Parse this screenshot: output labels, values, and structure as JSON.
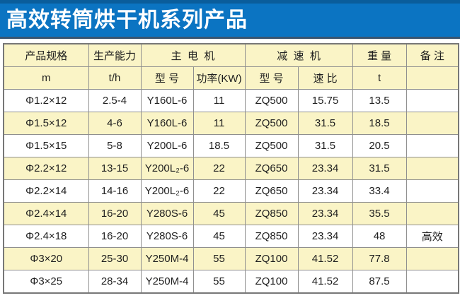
{
  "banner": {
    "title": "高效转筒烘干机系列产品",
    "bg_color": "#0b74c2",
    "top_strip_color": "#0a5d9b",
    "bottom_strip_color": "#3a5570",
    "text_color": "#ffffff"
  },
  "table": {
    "header_row1": [
      "产品规格",
      "生产能力",
      "主  电  机",
      "减  速  机",
      "重 量",
      "备 注"
    ],
    "header_row2": [
      "m",
      "t/h",
      "型 号",
      "功率(KW)",
      "型 号",
      "速 比",
      "t",
      ""
    ],
    "rows": [
      [
        "Φ1.2×12",
        "2.5-4",
        "Y160L-6",
        "11",
        "ZQ500",
        "15.75",
        "13.5",
        ""
      ],
      [
        "Φ1.5×12",
        "4-6",
        "Y160L-6",
        "11",
        "ZQ500",
        "31.5",
        "18.5",
        ""
      ],
      [
        "Φ1.5×15",
        "5-8",
        "Y200L-6",
        "18.5",
        "ZQ500",
        "31.5",
        "20.5",
        ""
      ],
      [
        "Φ2.2×12",
        "13-15",
        "Y200L₂-6",
        "22",
        "ZQ650",
        "23.34",
        "31.5",
        ""
      ],
      [
        "Φ2.2×14",
        "14-16",
        "Y200L₂-6",
        "22",
        "ZQ650",
        "23.34",
        "33.4",
        ""
      ],
      [
        "Φ2.4×14",
        "16-20",
        "Y280S-6",
        "45",
        "ZQ850",
        "23.34",
        "35.5",
        ""
      ],
      [
        "Φ2.4×18",
        "16-20",
        "Y280S-6",
        "45",
        "ZQ850",
        "23.34",
        "48",
        "高效"
      ],
      [
        "Φ3×20",
        "25-30",
        "Y250M-4",
        "55",
        "ZQ100",
        "41.52",
        "77.8",
        ""
      ],
      [
        "Φ3×25",
        "28-34",
        "Y250M-4",
        "55",
        "ZQ100",
        "41.52",
        "87.5",
        ""
      ]
    ],
    "colors": {
      "header_bg": "#faf4c6",
      "alt_row_bg": "#faf4c6",
      "row_bg": "#ffffff",
      "border": "#8f8f8f",
      "text": "#1f1f1f"
    }
  }
}
